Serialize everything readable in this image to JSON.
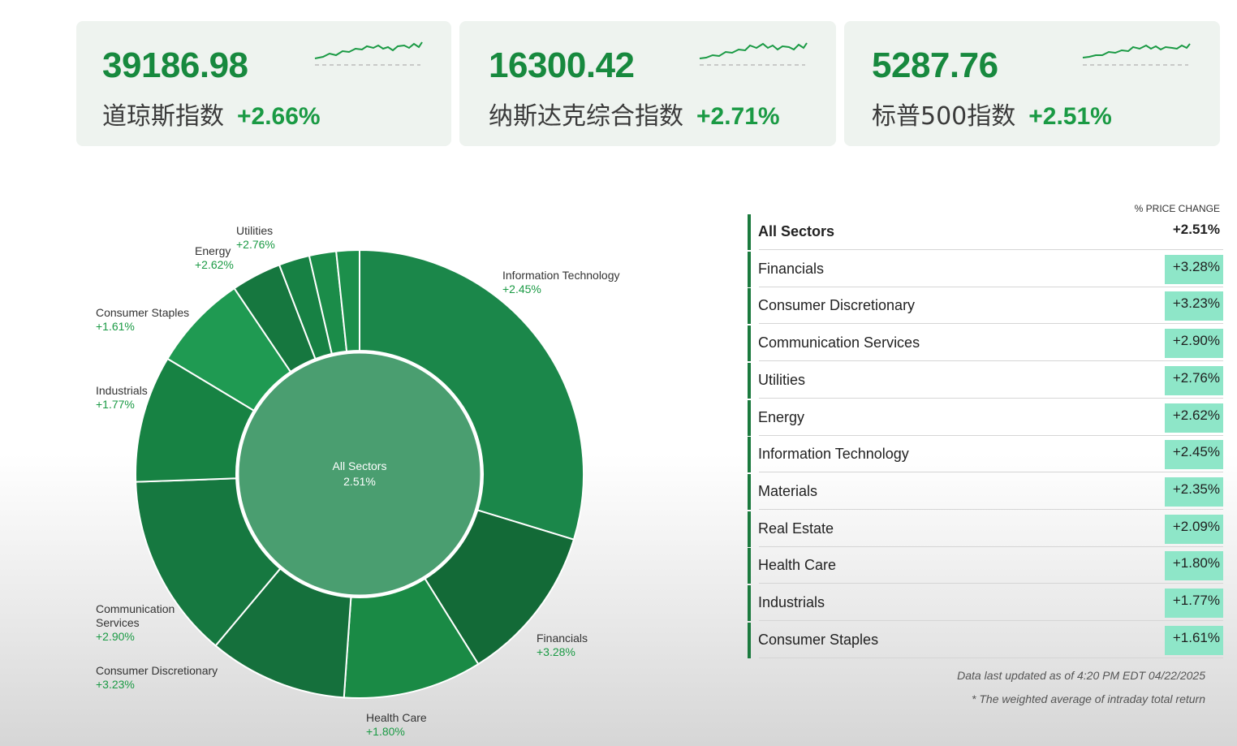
{
  "indices": [
    {
      "value": "39186.98",
      "name": "道琼斯指数",
      "change": "+2.66%"
    },
    {
      "value": "16300.42",
      "name": "纳斯达克综合指数",
      "change": "+2.71%"
    },
    {
      "value": "5287.76",
      "name": "标普500指数",
      "change": "+2.51%"
    }
  ],
  "donut": {
    "center_title": "All Sectors",
    "center_value": "2.51%",
    "labels": [
      {
        "name": "Utilities",
        "pct": "+2.76%"
      },
      {
        "name": "Energy",
        "pct": "+2.62%"
      },
      {
        "name": "Consumer Staples",
        "pct": "+1.61%"
      },
      {
        "name": "Industrials",
        "pct": "+1.77%"
      },
      {
        "name": "Communication Services",
        "pct": "+2.90%"
      },
      {
        "name": "Consumer Discretionary",
        "pct": "+3.23%"
      },
      {
        "name": "Health Care",
        "pct": "+1.80%"
      },
      {
        "name": "Financials",
        "pct": "+3.28%"
      },
      {
        "name": "Information Technology",
        "pct": "+2.45%"
      }
    ]
  },
  "table": {
    "header": "% PRICE CHANGE",
    "rows": [
      {
        "name": "All Sectors",
        "pct": "+2.51%"
      },
      {
        "name": "Financials",
        "pct": "+3.28%"
      },
      {
        "name": "Consumer Discretionary",
        "pct": "+3.23%"
      },
      {
        "name": "Communication Services",
        "pct": "+2.90%"
      },
      {
        "name": "Utilities",
        "pct": "+2.76%"
      },
      {
        "name": "Energy",
        "pct": "+2.62%"
      },
      {
        "name": "Information Technology",
        "pct": "+2.45%"
      },
      {
        "name": "Materials",
        "pct": "+2.35%"
      },
      {
        "name": "Real Estate",
        "pct": "+2.09%"
      },
      {
        "name": "Health Care",
        "pct": "+1.80%"
      },
      {
        "name": "Industrials",
        "pct": "+1.77%"
      },
      {
        "name": "Consumer Staples",
        "pct": "+1.61%"
      }
    ],
    "note_updated": "Data last updated as of 4:20 PM EDT 04/22/2025",
    "note_weighted": "* The weighted average of intraday total return"
  },
  "colors": {
    "accent_green": "#17893e",
    "change_green": "#1a9a44",
    "badge_bg": "#8ee6c8",
    "row_bar": "#1b7a3e"
  }
}
